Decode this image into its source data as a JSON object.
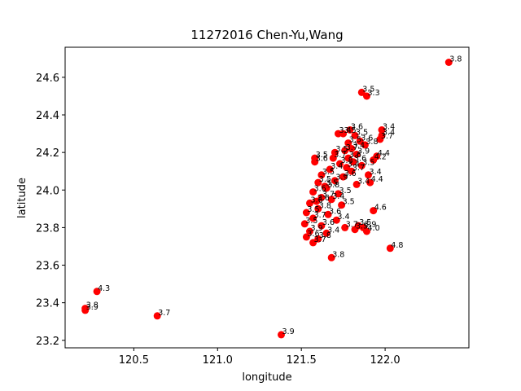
{
  "chart_data": {
    "type": "scatter",
    "title": "11272016 Chen-Yu,Wang",
    "xlabel": "longitude",
    "ylabel": "latitude",
    "xlim": [
      120.09,
      122.5
    ],
    "ylim": [
      23.16,
      24.76
    ],
    "xticks": [
      120.5,
      121.0,
      121.5,
      122.0
    ],
    "xtick_labels": [
      "120.5",
      "121.0",
      "121.5",
      "122.0"
    ],
    "yticks": [
      23.2,
      23.4,
      23.6,
      23.8,
      24.0,
      24.2,
      24.4,
      24.6
    ],
    "ytick_labels": [
      "23.2",
      "23.4",
      "23.6",
      "23.8",
      "24.0",
      "24.2",
      "24.4",
      "24.6"
    ],
    "marker_color": "#ff0000",
    "grid": false,
    "points": [
      {
        "x": 122.38,
        "y": 24.68,
        "label": "3.8"
      },
      {
        "x": 121.86,
        "y": 24.52,
        "label": "3.5"
      },
      {
        "x": 121.89,
        "y": 24.5,
        "label": "3.3"
      },
      {
        "x": 121.98,
        "y": 24.32,
        "label": "3.4"
      },
      {
        "x": 121.98,
        "y": 24.29,
        "label": "3.4"
      },
      {
        "x": 121.97,
        "y": 24.27,
        "label": "3.7"
      },
      {
        "x": 121.95,
        "y": 24.18,
        "label": "4.4"
      },
      {
        "x": 121.93,
        "y": 24.16,
        "label": "4.2"
      },
      {
        "x": 121.9,
        "y": 24.08,
        "label": "3.4"
      },
      {
        "x": 121.91,
        "y": 24.04,
        "label": "4.4"
      },
      {
        "x": 121.93,
        "y": 23.89,
        "label": "4.6"
      },
      {
        "x": 121.87,
        "y": 23.8,
        "label": "3.9"
      },
      {
        "x": 121.89,
        "y": 23.78,
        "label": "4.0"
      },
      {
        "x": 122.03,
        "y": 23.69,
        "label": "4.8"
      },
      {
        "x": 121.68,
        "y": 23.64,
        "label": "3.8"
      },
      {
        "x": 121.57,
        "y": 23.72,
        "label": "3.7"
      },
      {
        "x": 120.28,
        "y": 23.46,
        "label": "4.3"
      },
      {
        "x": 120.21,
        "y": 23.37,
        "label": "3.8"
      },
      {
        "x": 120.21,
        "y": 23.36,
        "label": "3.9"
      },
      {
        "x": 120.64,
        "y": 23.33,
        "label": "3.7"
      },
      {
        "x": 121.38,
        "y": 23.23,
        "label": "3.9"
      },
      {
        "x": 121.79,
        "y": 24.32,
        "label": "3.6"
      },
      {
        "x": 121.75,
        "y": 24.3,
        "label": "3.5"
      },
      {
        "x": 121.72,
        "y": 24.3,
        "label": "3.4"
      },
      {
        "x": 121.82,
        "y": 24.29,
        "label": "3.5"
      },
      {
        "x": 121.85,
        "y": 24.26,
        "label": "3.6"
      },
      {
        "x": 121.88,
        "y": 24.24,
        "label": "3.8"
      },
      {
        "x": 121.8,
        "y": 24.22,
        "label": "3.4"
      },
      {
        "x": 121.76,
        "y": 24.21,
        "label": "3.7"
      },
      {
        "x": 121.7,
        "y": 24.2,
        "label": "3.5"
      },
      {
        "x": 121.83,
        "y": 24.19,
        "label": "3.9"
      },
      {
        "x": 121.78,
        "y": 24.17,
        "label": "3.6"
      },
      {
        "x": 121.58,
        "y": 24.17,
        "label": "3.5"
      },
      {
        "x": 121.58,
        "y": 24.15,
        "label": "3.6"
      },
      {
        "x": 121.73,
        "y": 24.14,
        "label": "3.8"
      },
      {
        "x": 121.86,
        "y": 24.13,
        "label": "3.5"
      },
      {
        "x": 121.67,
        "y": 24.11,
        "label": "3.4"
      },
      {
        "x": 121.8,
        "y": 24.1,
        "label": "3.7"
      },
      {
        "x": 121.62,
        "y": 24.08,
        "label": "3.5"
      },
      {
        "x": 121.75,
        "y": 24.07,
        "label": "3.6"
      },
      {
        "x": 121.7,
        "y": 24.05,
        "label": "3.9"
      },
      {
        "x": 121.6,
        "y": 24.04,
        "label": "3.5"
      },
      {
        "x": 121.83,
        "y": 24.03,
        "label": "3.4"
      },
      {
        "x": 121.65,
        "y": 24.01,
        "label": "3.8"
      },
      {
        "x": 121.57,
        "y": 23.99,
        "label": "3.6"
      },
      {
        "x": 121.72,
        "y": 23.98,
        "label": "3.5"
      },
      {
        "x": 121.62,
        "y": 23.96,
        "label": "3.7"
      },
      {
        "x": 121.68,
        "y": 23.95,
        "label": "3.4"
      },
      {
        "x": 121.55,
        "y": 23.93,
        "label": "3.6"
      },
      {
        "x": 121.74,
        "y": 23.92,
        "label": "3.5"
      },
      {
        "x": 121.6,
        "y": 23.9,
        "label": "3.8"
      },
      {
        "x": 121.53,
        "y": 23.88,
        "label": "3.5"
      },
      {
        "x": 121.66,
        "y": 23.87,
        "label": "3.6"
      },
      {
        "x": 121.57,
        "y": 23.85,
        "label": "3.7"
      },
      {
        "x": 121.71,
        "y": 23.84,
        "label": "3.4"
      },
      {
        "x": 121.52,
        "y": 23.82,
        "label": "3.5"
      },
      {
        "x": 121.62,
        "y": 23.81,
        "label": "3.6"
      },
      {
        "x": 121.76,
        "y": 23.8,
        "label": "3.7"
      },
      {
        "x": 121.55,
        "y": 23.78,
        "label": "3.9"
      },
      {
        "x": 121.82,
        "y": 23.79,
        "label": "3.5"
      },
      {
        "x": 121.65,
        "y": 23.77,
        "label": "3.4"
      },
      {
        "x": 121.53,
        "y": 23.75,
        "label": "3.6"
      },
      {
        "x": 121.6,
        "y": 23.74,
        "label": "3.8"
      },
      {
        "x": 121.78,
        "y": 24.25,
        "label": "3.5"
      },
      {
        "x": 121.81,
        "y": 24.15,
        "label": "3.6"
      },
      {
        "x": 121.77,
        "y": 24.12,
        "label": "3.4"
      },
      {
        "x": 121.69,
        "y": 24.17,
        "label": "3.7"
      },
      {
        "x": 121.64,
        "y": 24.02,
        "label": "3.5"
      },
      {
        "x": 121.59,
        "y": 23.94,
        "label": "3.6"
      },
      {
        "x": 121.84,
        "y": 23.81,
        "label": "3.5"
      }
    ]
  }
}
